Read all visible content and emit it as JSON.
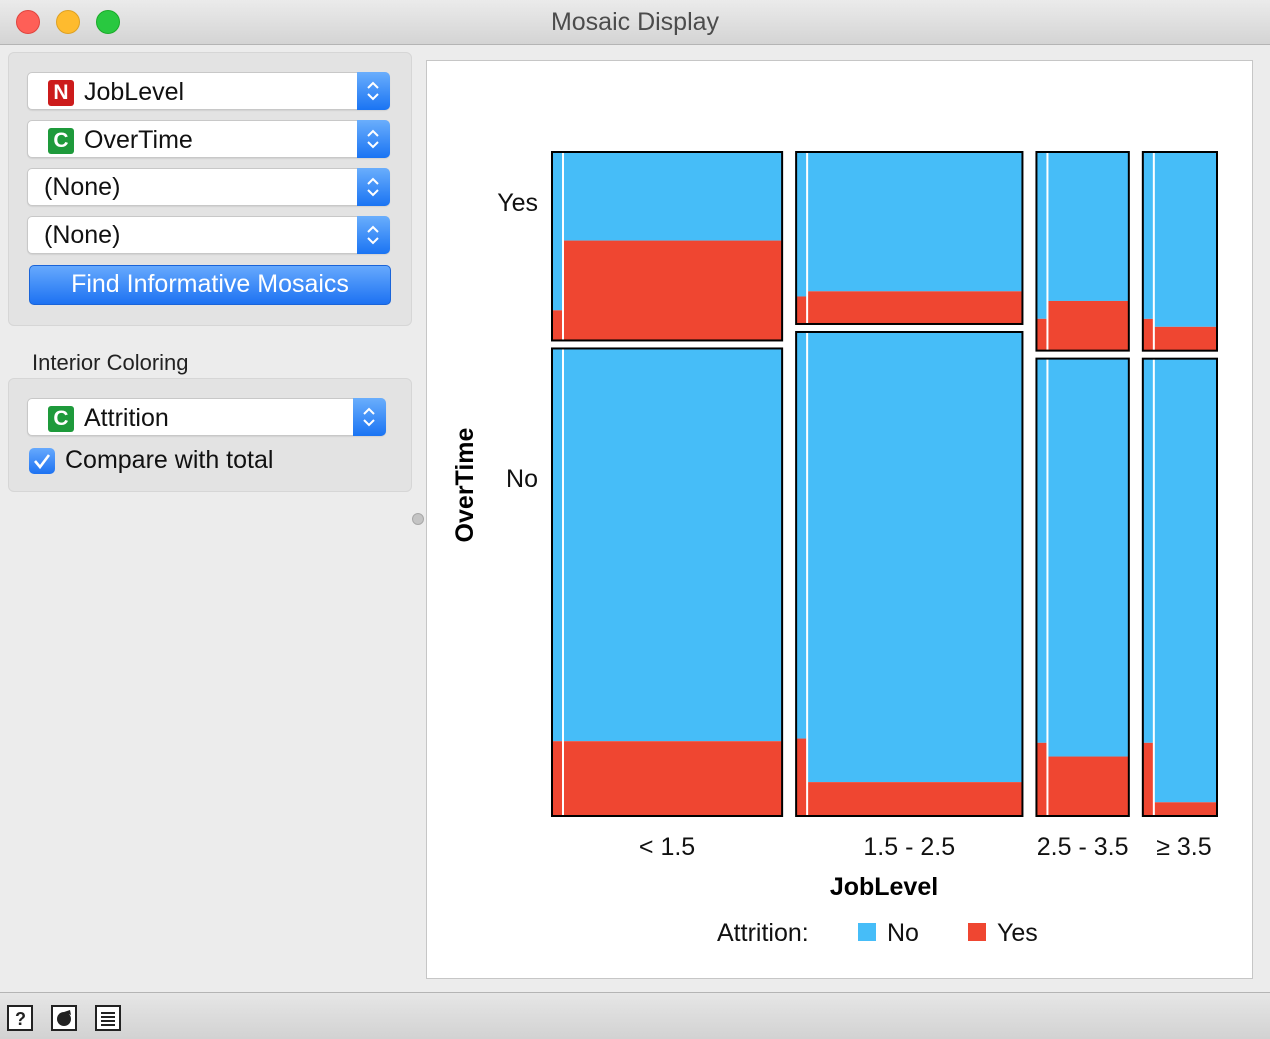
{
  "window": {
    "title": "Mosaic Display"
  },
  "variables": {
    "combos": [
      {
        "type_badge": "N",
        "label": "JobLevel"
      },
      {
        "type_badge": "C",
        "label": "OverTime"
      },
      {
        "label": "(None)"
      },
      {
        "label": "(None)"
      }
    ],
    "find_button": "Find Informative Mosaics"
  },
  "interior": {
    "section_label": "Interior Coloring",
    "color_combo": {
      "type_badge": "C",
      "label": "Attrition"
    },
    "compare_checkbox": {
      "label": "Compare with total",
      "checked": true
    }
  },
  "colors": {
    "no": "#46bdf8",
    "yes": "#ef4631",
    "accent": "#1d72f2"
  },
  "chart_data": {
    "type": "mosaic",
    "xlabel": "JobLevel",
    "ylabel": "OverTime",
    "x_categories": [
      "< 1.5",
      "1.5 - 2.5",
      "2.5 - 3.5",
      "≥ 3.5"
    ],
    "x_widths": [
      543,
      534,
      218,
      175
    ],
    "y_categories": [
      "Yes",
      "No"
    ],
    "cells": [
      {
        "x": "< 1.5",
        "y": "Yes",
        "yes_fraction": 0.53,
        "count": 156
      },
      {
        "x": "< 1.5",
        "y": "No",
        "yes_fraction": 0.16,
        "count": 387
      },
      {
        "x": "1.5 - 2.5",
        "y": "Yes",
        "yes_fraction": 0.19,
        "count": 140
      },
      {
        "x": "1.5 - 2.5",
        "y": "No",
        "yes_fraction": 0.07,
        "count": 394
      },
      {
        "x": "2.5 - 3.5",
        "y": "Yes",
        "yes_fraction": 0.25,
        "count": 66
      },
      {
        "x": "2.5 - 3.5",
        "y": "No",
        "yes_fraction": 0.13,
        "count": 152
      },
      {
        "x": "≥ 3.5",
        "y": "Yes",
        "yes_fraction": 0.12,
        "count": 53
      },
      {
        "x": "≥ 3.5",
        "y": "No",
        "yes_fraction": 0.03,
        "count": 122
      }
    ],
    "total_yes_fraction": 0.16,
    "legend": {
      "title": "Attrition:",
      "items": [
        "No",
        "Yes"
      ],
      "placement": "bottom"
    }
  }
}
